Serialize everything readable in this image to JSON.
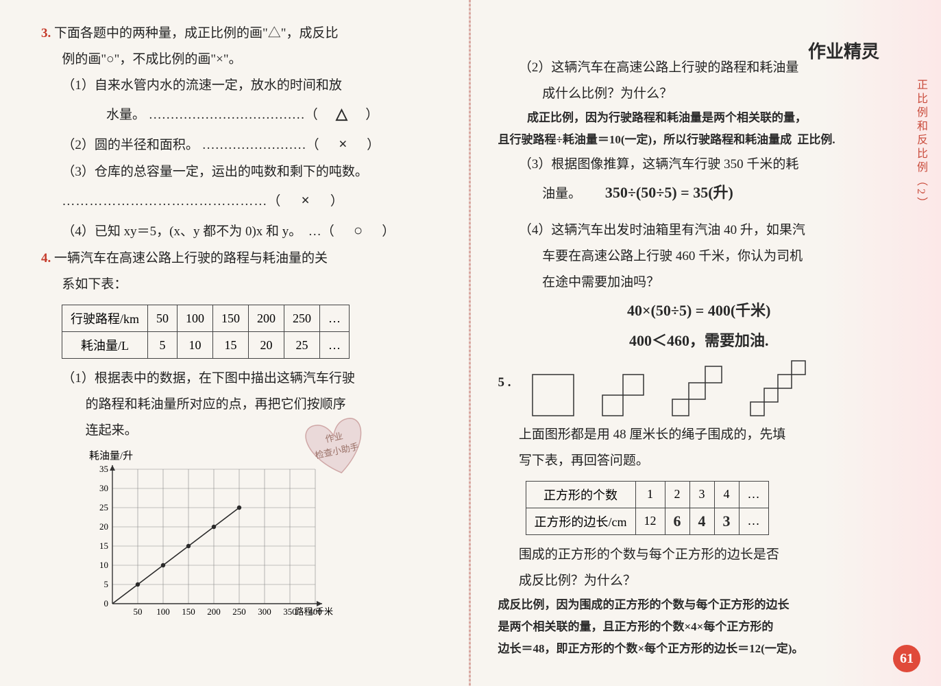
{
  "watermark": "作业精灵",
  "side_title": "正比例和反比例（2）",
  "page_number": "61",
  "left": {
    "q3": {
      "num": "3.",
      "stem_a": "下面各题中的两种量，成正比例的画\"△\"，成反比",
      "stem_b": "例的画\"○\"，不成比例的画\"×\"。",
      "s1a": "（1）自来水管内水的流速一定，放水的时间和放",
      "s1b": "水量。 ………………………………（",
      "s1ans": "△",
      "s1c": "）",
      "s2": "（2）圆的半径和面积。 ……………………（",
      "s2ans": "×",
      "s2c": "）",
      "s3a": "（3）仓库的总容量一定，运出的吨数和剩下的吨数。",
      "s3b": "………………………………………（",
      "s3ans": "×",
      "s3c": "）",
      "s4": "（4）已知 xy＝5，(x、y 都不为 0)x 和 y。　…（",
      "s4ans": "○",
      "s4c": "）"
    },
    "q4": {
      "num": "4.",
      "stem_a": "一辆汽车在高速公路上行驶的路程与耗油量的关",
      "stem_b": "系如下表：",
      "table": {
        "headers": [
          "行驶路程/km",
          "50",
          "100",
          "150",
          "200",
          "250",
          "…"
        ],
        "row2": [
          "耗油量/L",
          "5",
          "10",
          "15",
          "20",
          "25",
          "…"
        ]
      },
      "s1a": "（1）根据表中的数据，在下图中描出这辆汽车行驶",
      "s1b": "的路程和耗油量所对应的点，再把它们按顺序",
      "s1c": "连起来。",
      "chart": {
        "ylabel": "耗油量/升",
        "xlabel": "路程/千米",
        "yticks": [
          "0",
          "5",
          "10",
          "15",
          "20",
          "25",
          "30",
          "35"
        ],
        "xticks": [
          "50",
          "100",
          "150",
          "200",
          "250",
          "300",
          "350",
          "400"
        ],
        "points": [
          [
            50,
            5
          ],
          [
            100,
            10
          ],
          [
            150,
            15
          ],
          [
            200,
            20
          ],
          [
            250,
            25
          ]
        ],
        "xmax": 400,
        "ymax": 35,
        "grid_color": "#888",
        "axis_color": "#333",
        "line_color": "#2a2a2a"
      }
    }
  },
  "right": {
    "q4_2a": "（2）这辆汽车在高速公路上行驶的路程和耗油量",
    "q4_2b": "成什么比例？为什么？",
    "q4_2ans1": "成正比例，因为行驶路程和耗油量是两个相关联的量，",
    "q4_2ans2": "且行驶路程÷耗油量＝10(一定)，所以行驶路程和耗油量成",
    "q4_2ans2_tail": "正比例.",
    "q4_3a": "（3）根据图像推算，这辆汽车行驶 350 千米的耗",
    "q4_3b": "油量。",
    "q4_3ans": "350÷(50÷5) = 35(升)",
    "q4_4a": "（4）这辆汽车出发时油箱里有汽油 40 升，如果汽",
    "q4_4b": "车要在高速公路上行驶 460 千米，你认为司机",
    "q4_4c": "在途中需要加油吗？",
    "q4_4ans1": "40×(50÷5) = 400(千米)",
    "q4_4ans2": "400＜460，需要加油.",
    "q5": {
      "num": "5 .",
      "shapes": {
        "size1": 60,
        "size2": 30,
        "size3": 24,
        "size4": 20,
        "stroke": "#333"
      },
      "stem_a": "上面图形都是用 48 厘米长的绳子围成的，先填",
      "stem_b": "写下表，再回答问题。",
      "table": {
        "r1": [
          "正方形的个数",
          "1",
          "2",
          "3",
          "4",
          "…"
        ],
        "r2": [
          "正方形的边长/cm",
          "12",
          "6",
          "4",
          "3",
          "…"
        ]
      },
      "r2_hand_idx": [
        2,
        3,
        4
      ],
      "final_a": "围成的正方形的个数与每个正方形的边长是否",
      "final_b": "成反比例？为什么？",
      "ans1": "成反比例，因为围成的正方形的个数与每个正方形的边长",
      "ans2": "是两个相关联的量，且正方形的个数×4×每个正方形的",
      "ans3": "边长＝48，即正方形的个数×每个正方形的边长＝12(一定)。"
    }
  }
}
